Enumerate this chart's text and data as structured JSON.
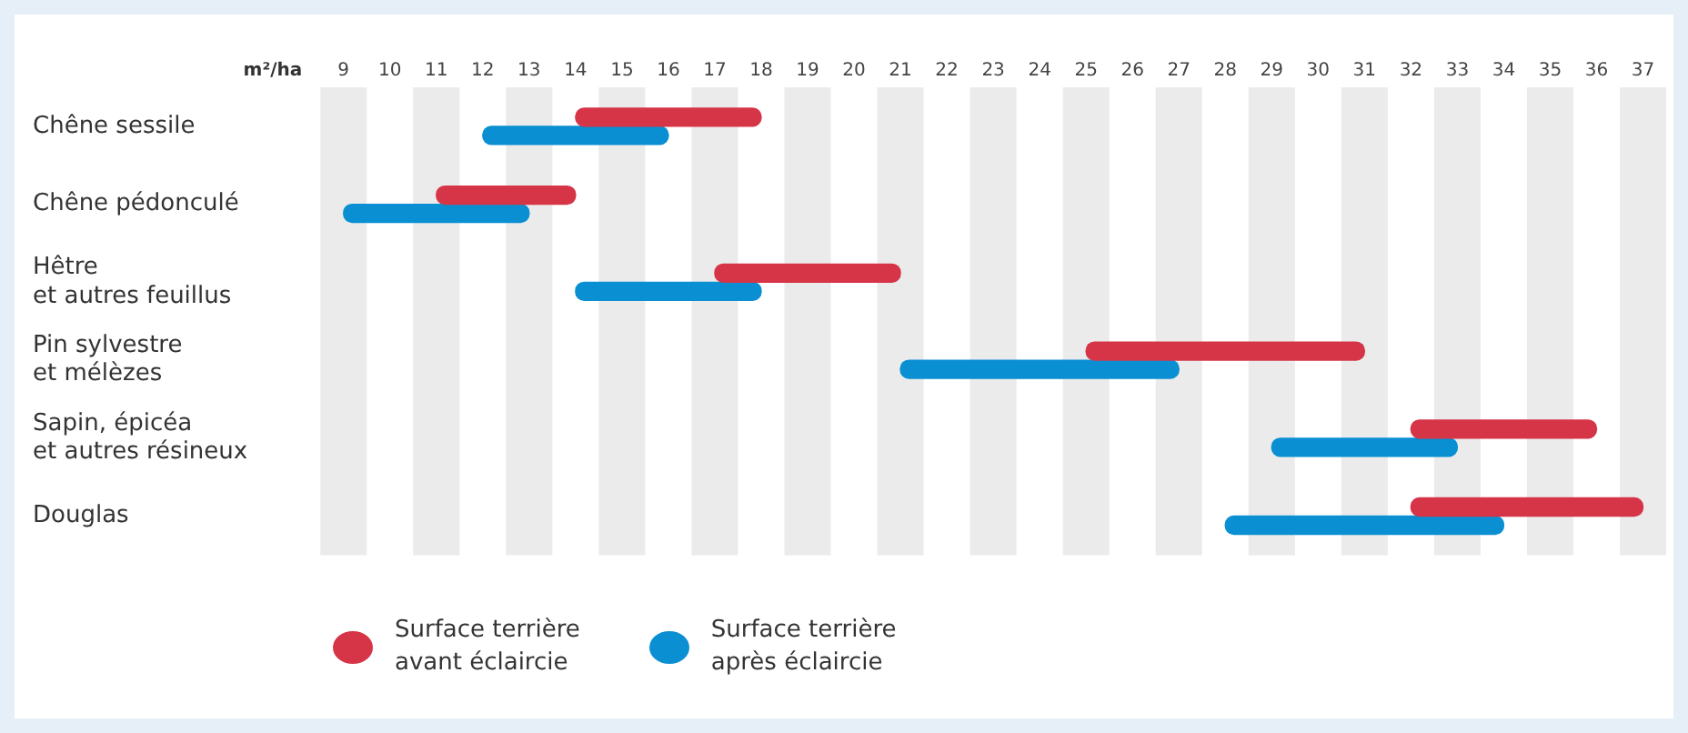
{
  "chart_data": {
    "type": "bar",
    "orientation": "horizontal",
    "xlabel": "m²/ha",
    "categories": [
      "Chêne sessile",
      "Chêne pédonculé",
      "Hêtre\net autres feuillus",
      "Pin sylvestre\net mélèzes",
      "Sapin, épicéa\net autres résineux",
      "Douglas"
    ],
    "series": [
      {
        "name": "Surface terrière\navant éclaircie",
        "color": "#d63447",
        "base": [
          14,
          11,
          17,
          25,
          32,
          32
        ],
        "values": [
          4,
          3,
          4,
          6,
          4,
          5
        ]
      },
      {
        "name": "Surface terrière\naprès éclaircie",
        "color": "#0a8fd2",
        "base": [
          12,
          9,
          14,
          21,
          29,
          28
        ],
        "values": [
          4,
          4,
          4,
          6,
          4,
          6
        ]
      }
    ],
    "xlim": [
      8.5,
      37.5
    ],
    "xticks": [
      9,
      10,
      11,
      12,
      13,
      14,
      15,
      16,
      17,
      18,
      19,
      20,
      21,
      22,
      23,
      24,
      25,
      26,
      27,
      28,
      29,
      30,
      31,
      32,
      33,
      34,
      35,
      36,
      37
    ],
    "bands": [
      {
        "axis": "x",
        "from": 8.5,
        "to": 9.5,
        "color": "#ebebeb"
      },
      {
        "axis": "x",
        "from": 10.5,
        "to": 11.5,
        "color": "#ebebeb"
      },
      {
        "axis": "x",
        "from": 12.5,
        "to": 13.5,
        "color": "#ebebeb"
      },
      {
        "axis": "x",
        "from": 14.5,
        "to": 15.5,
        "color": "#ebebeb"
      },
      {
        "axis": "x",
        "from": 16.5,
        "to": 17.5,
        "color": "#ebebeb"
      },
      {
        "axis": "x",
        "from": 18.5,
        "to": 19.5,
        "color": "#ebebeb"
      },
      {
        "axis": "x",
        "from": 20.5,
        "to": 21.5,
        "color": "#ebebeb"
      },
      {
        "axis": "x",
        "from": 22.5,
        "to": 23.5,
        "color": "#ebebeb"
      },
      {
        "axis": "x",
        "from": 24.5,
        "to": 25.5,
        "color": "#ebebeb"
      },
      {
        "axis": "x",
        "from": 26.5,
        "to": 27.5,
        "color": "#ebebeb"
      },
      {
        "axis": "x",
        "from": 28.5,
        "to": 29.5,
        "color": "#ebebeb"
      },
      {
        "axis": "x",
        "from": 30.5,
        "to": 31.5,
        "color": "#ebebeb"
      },
      {
        "axis": "x",
        "from": 32.5,
        "to": 33.5,
        "color": "#ebebeb"
      },
      {
        "axis": "x",
        "from": 34.5,
        "to": 35.5,
        "color": "#ebebeb"
      },
      {
        "axis": "x",
        "from": 36.5,
        "to": 37.5,
        "color": "#ebebeb"
      }
    ],
    "legend": "bottom"
  }
}
